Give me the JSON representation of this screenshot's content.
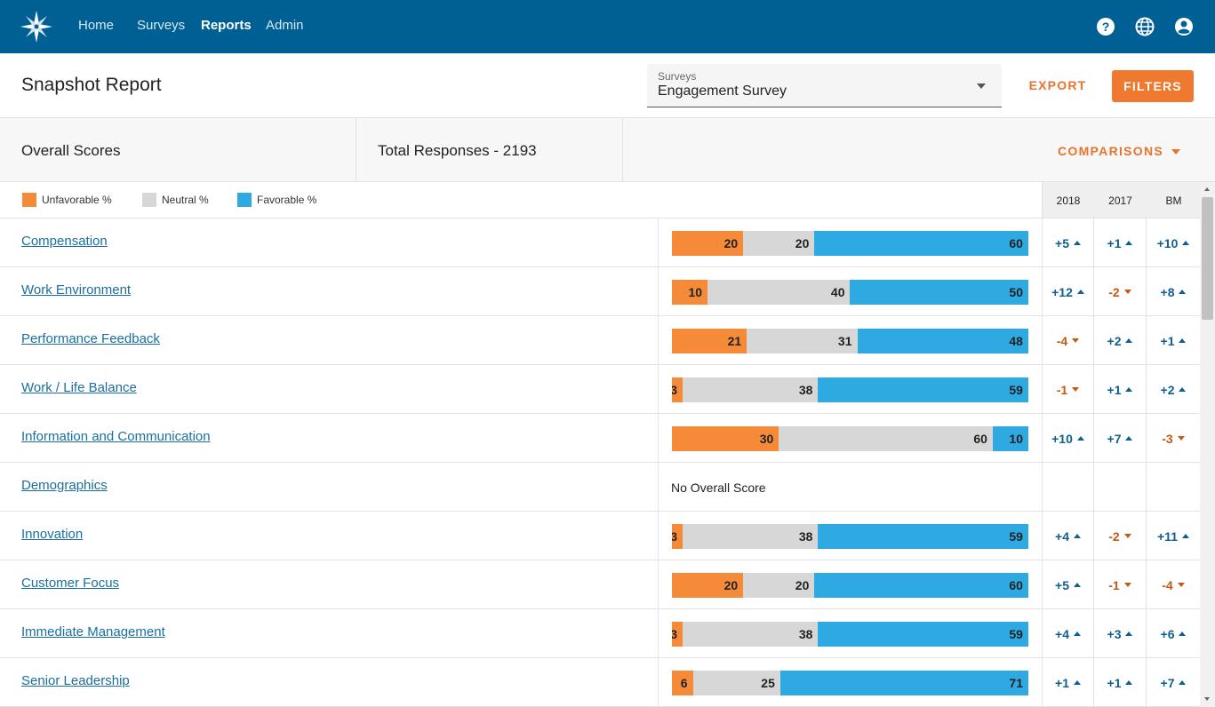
{
  "nav": {
    "items": [
      {
        "label": "Home",
        "active": false
      },
      {
        "label": "Surveys",
        "active": false
      },
      {
        "label": "Reports",
        "active": true
      },
      {
        "label": "Admin",
        "active": false
      }
    ],
    "icons": [
      "help-icon",
      "globe-icon",
      "account-icon"
    ]
  },
  "header": {
    "title": "Snapshot Report",
    "survey_select": {
      "label": "Surveys",
      "value": "Engagement Survey"
    },
    "export_label": "EXPORT",
    "filters_label": "FILTERS"
  },
  "summary": {
    "overall_label": "Overall Scores",
    "total_responses": "Total Responses - 2193",
    "comparisons_label": "COMPARISONS"
  },
  "legend": [
    {
      "label": "Unfavorable %",
      "color": "#f58a38"
    },
    {
      "label": "Neutral %",
      "color": "#d7d7d7"
    },
    {
      "label": "Favorable %",
      "color": "#2fa9e1"
    }
  ],
  "columns": [
    "2018",
    "2017",
    "BM"
  ],
  "no_score_text": "No Overall Score",
  "rows": [
    {
      "label": "Compensation",
      "unf": 20,
      "neu": 20,
      "fav": 60,
      "cmp": [
        {
          "v": "+5",
          "dir": "up"
        },
        {
          "v": "+1",
          "dir": "up"
        },
        {
          "v": "+10",
          "dir": "up"
        }
      ]
    },
    {
      "label": "Work Environment",
      "unf": 10,
      "neu": 40,
      "fav": 50,
      "cmp": [
        {
          "v": "+12",
          "dir": "up"
        },
        {
          "v": "-2",
          "dir": "down"
        },
        {
          "v": "+8",
          "dir": "up"
        }
      ]
    },
    {
      "label": "Performance Feedback",
      "unf": 21,
      "neu": 31,
      "fav": 48,
      "cmp": [
        {
          "v": "-4",
          "dir": "down"
        },
        {
          "v": "+2",
          "dir": "up"
        },
        {
          "v": "+1",
          "dir": "up"
        }
      ]
    },
    {
      "label": "Work / Life Balance",
      "unf": 3,
      "neu": 38,
      "fav": 59,
      "cmp": [
        {
          "v": "-1",
          "dir": "down"
        },
        {
          "v": "+1",
          "dir": "up"
        },
        {
          "v": "+2",
          "dir": "up"
        }
      ]
    },
    {
      "label": "Information and Communication",
      "unf": 30,
      "neu": 60,
      "fav": 10,
      "cmp": [
        {
          "v": "+10",
          "dir": "up"
        },
        {
          "v": "+7",
          "dir": "up"
        },
        {
          "v": "-3",
          "dir": "down"
        }
      ]
    },
    {
      "label": "Demographics",
      "no_score": true
    },
    {
      "label": "Innovation",
      "unf": 3,
      "neu": 38,
      "fav": 59,
      "cmp": [
        {
          "v": "+4",
          "dir": "up"
        },
        {
          "v": "-2",
          "dir": "down"
        },
        {
          "v": "+11",
          "dir": "up"
        }
      ]
    },
    {
      "label": "Customer Focus",
      "unf": 20,
      "neu": 20,
      "fav": 60,
      "cmp": [
        {
          "v": "+5",
          "dir": "up"
        },
        {
          "v": "-1",
          "dir": "down"
        },
        {
          "v": "-4",
          "dir": "down"
        }
      ]
    },
    {
      "label": "Immediate Management",
      "unf": 3,
      "neu": 38,
      "fav": 59,
      "cmp": [
        {
          "v": "+4",
          "dir": "up"
        },
        {
          "v": "+3",
          "dir": "up"
        },
        {
          "v": "+6",
          "dir": "up"
        }
      ]
    },
    {
      "label": "Senior Leadership",
      "unf": 6,
      "neu": 25,
      "fav": 71,
      "cmp": [
        {
          "v": "+1",
          "dir": "up"
        },
        {
          "v": "+1",
          "dir": "up"
        },
        {
          "v": "+7",
          "dir": "up"
        }
      ]
    }
  ]
}
